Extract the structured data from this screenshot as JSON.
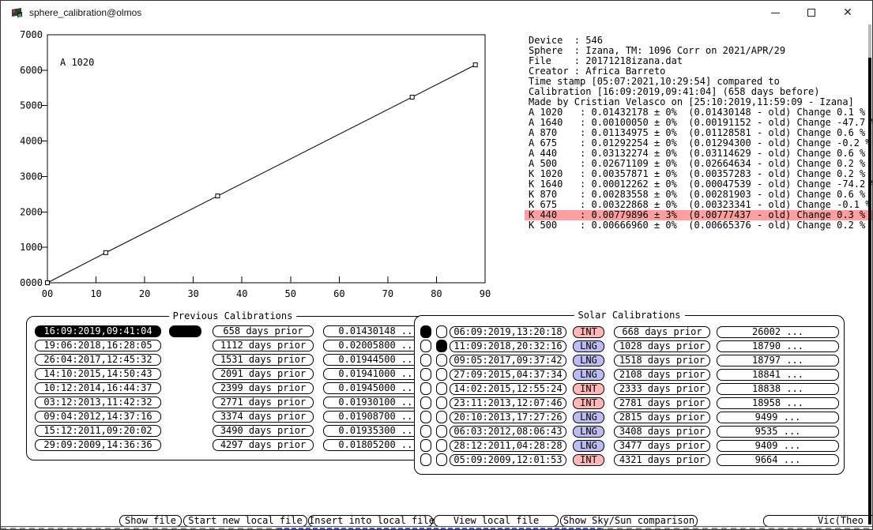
{
  "window": {
    "title": "sphere_calibration@olmos",
    "controls": {
      "minimize": "minimize",
      "maximize": "maximize",
      "close": "✕"
    }
  },
  "chart_data": {
    "type": "line",
    "title": "",
    "annotation": "A 1020",
    "xlabel": "",
    "ylabel": "",
    "xlim": [
      0,
      90
    ],
    "ylim": [
      0,
      7000
    ],
    "x_ticks": [
      "00",
      "10",
      "20",
      "30",
      "40",
      "50",
      "60",
      "70",
      "80",
      "90"
    ],
    "y_ticks": [
      "0000",
      "1000",
      "2000",
      "3000",
      "4000",
      "5000",
      "6000",
      "7000"
    ],
    "grid": false,
    "marker": "open-square",
    "series": [
      {
        "name": "A 1020",
        "x": [
          0,
          12,
          35,
          75,
          88
        ],
        "y": [
          0,
          850,
          2450,
          5240,
          6150
        ]
      }
    ]
  },
  "info": {
    "lines": [
      "Device  : 546",
      "Sphere  : Izana, TM: 1096 Corr on 2021/APR/29",
      "File    : 20171218izana.dat",
      "Creator : Africa Barreto",
      "Time stamp [05:07:2021,10:29:54] compared to",
      "Calibration [16:09:2019,09:41:04] (658 days before)",
      "Made by Cristian Velasco on [25:10:2019,11:59:09 - Izana]",
      "A 1020   : 0.01432178 ± 0%  (0.01430148 - old) Change 0.1 %",
      "A 1640   : 0.00100050 ± 0%  (0.00191152 - old) Change -47.7 %",
      "A 870    : 0.01134975 ± 0%  (0.01128581 - old) Change 0.6 %",
      "A 675    : 0.01292254 ± 0%  (0.01294300 - old) Change -0.2 %",
      "A 440    : 0.03132274 ± 0%  (0.03114629 - old) Change 0.6 %",
      "A 500    : 0.02671109 ± 0%  (0.02664634 - old) Change 0.2 %",
      "K 1020   : 0.00357871 ± 0%  (0.00357283 - old) Change 0.2 %",
      "K 1640   : 0.00012262 ± 0%  (0.00047539 - old) Change -74.2 %",
      "K 870    : 0.00283558 ± 0%  (0.00281903 - old) Change 0.6 %",
      "K 675    : 0.00322868 ± 0%  (0.00323341 - old) Change -0.1 %",
      "K 440    : 0.00779896 ± 3%  (0.00777437 - old) Change 0.3 %",
      "K 500    : 0.00666960 ± 0%  (0.00665376 - old) Change 0.2 %"
    ],
    "highlight_index": 17,
    "highlight_color": "#ff9e9e"
  },
  "previous_calibrations": {
    "title": "Previous Calibrations",
    "rows": [
      {
        "date": "16:09:2019,09:41:04",
        "days": "658 days prior",
        "value": "0.01430148 ...",
        "selected": true
      },
      {
        "date": "19:06:2018,16:28:05",
        "days": "1112 days prior",
        "value": "0.02005800 ...",
        "selected": false
      },
      {
        "date": "26:04:2017,12:45:32",
        "days": "1531 days prior",
        "value": "0.01944500 ...",
        "selected": false
      },
      {
        "date": "14:10:2015,14:50:43",
        "days": "2091 days prior",
        "value": "0.01941000 ...",
        "selected": false
      },
      {
        "date": "10:12:2014,16:44:37",
        "days": "2399 days prior",
        "value": "0.01945000 ...",
        "selected": false
      },
      {
        "date": "03:12:2013,11:42:32",
        "days": "2771 days prior",
        "value": "0.01930100 ...",
        "selected": false
      },
      {
        "date": "09:04:2012,14:37:16",
        "days": "3374 days prior",
        "value": "0.01908700 ...",
        "selected": false
      },
      {
        "date": "15:12:2011,09:20:02",
        "days": "3490 days prior",
        "value": "0.01935300 ...",
        "selected": false
      },
      {
        "date": "29:09:2009,14:36:36",
        "days": "4297 days prior",
        "value": "0.01805200 ...",
        "selected": false
      }
    ]
  },
  "solar_calibrations": {
    "title": "Solar Calibrations",
    "type_colors": {
      "INT": "#ffb7b7",
      "LNG": "#bcbcf2"
    },
    "rows": [
      {
        "cb1": true,
        "cb2": false,
        "date": "06:09:2019,13:20:18",
        "type": "INT",
        "days": "668 days prior",
        "value": "26002 ..."
      },
      {
        "cb1": false,
        "cb2": true,
        "date": "11:09:2018,20:32:16",
        "type": "LNG",
        "days": "1028 days prior",
        "value": "18790 ..."
      },
      {
        "cb1": false,
        "cb2": false,
        "date": "09:05:2017,09:37:42",
        "type": "LNG",
        "days": "1518 days prior",
        "value": "18797 ..."
      },
      {
        "cb1": false,
        "cb2": false,
        "date": "27:09:2015,04:37:34",
        "type": "LNG",
        "days": "2108 days prior",
        "value": "18841 ..."
      },
      {
        "cb1": false,
        "cb2": false,
        "date": "14:02:2015,12:55:24",
        "type": "INT",
        "days": "2333 days prior",
        "value": "18838 ..."
      },
      {
        "cb1": false,
        "cb2": false,
        "date": "23:11:2013,12:07:46",
        "type": "INT",
        "days": "2781 days prior",
        "value": "18958 ..."
      },
      {
        "cb1": false,
        "cb2": false,
        "date": "20:10:2013,17:27:26",
        "type": "LNG",
        "days": "2815 days prior",
        "value": "9499 ..."
      },
      {
        "cb1": false,
        "cb2": false,
        "date": "06:03:2012,08:06:43",
        "type": "LNG",
        "days": "3408 days prior",
        "value": "9535 ..."
      },
      {
        "cb1": false,
        "cb2": false,
        "date": "28:12:2011,04:28:28",
        "type": "LNG",
        "days": "3477 days prior",
        "value": "9409 ..."
      },
      {
        "cb1": false,
        "cb2": false,
        "date": "05:09:2009,12:01:53",
        "type": "INT",
        "days": "4321 days prior",
        "value": "9664 ..."
      }
    ]
  },
  "footer": {
    "buttons": [
      "Show file",
      "Start new local file",
      "Insert into local file",
      "View local file",
      "Show Sky/Sun comparison",
      "Vic(Theo"
    ]
  }
}
